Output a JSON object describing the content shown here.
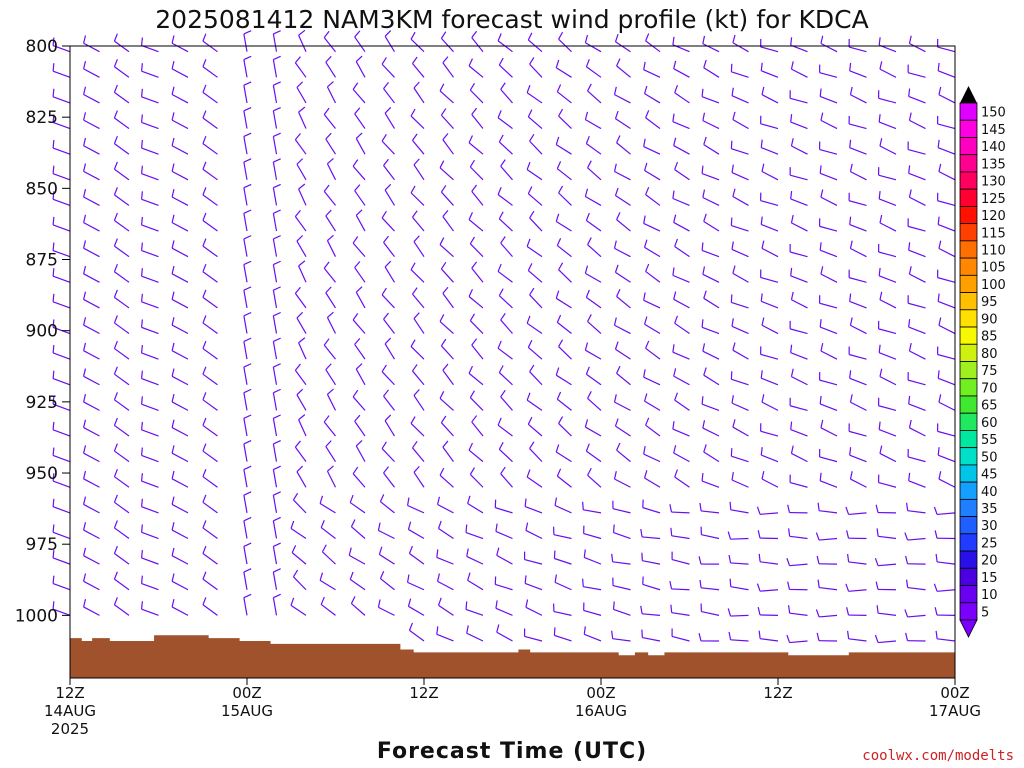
{
  "chart_data": {
    "type": "wind_barb_time_height",
    "title": "2025081412 NAM3KM forecast wind profile (kt) for KDCA",
    "xlabel": "Forecast Time (UTC)",
    "ylabel": "",
    "y_axis": {
      "ticks": [
        800,
        825,
        850,
        875,
        900,
        925,
        950,
        975,
        1000
      ],
      "ylim": [
        800,
        1022
      ],
      "units": "hPa"
    },
    "x_axis": {
      "ticks": [
        {
          "hour": 0,
          "lines": [
            "12Z",
            "14AUG",
            "2025"
          ]
        },
        {
          "hour": 12,
          "lines": [
            "00Z",
            "15AUG"
          ]
        },
        {
          "hour": 24,
          "lines": [
            "12Z"
          ]
        },
        {
          "hour": 36,
          "lines": [
            "00Z",
            "16AUG"
          ]
        },
        {
          "hour": 48,
          "lines": [
            "12Z"
          ]
        },
        {
          "hour": 60,
          "lines": [
            "00Z",
            "17AUG"
          ]
        }
      ],
      "xlim": [
        0,
        60
      ]
    },
    "barb_color": "#6a0df0",
    "terrain_color": "#a0522d",
    "surface_pressure_profile": [
      [
        0,
        1008
      ],
      [
        0.8,
        1009
      ],
      [
        1.5,
        1008
      ],
      [
        2.7,
        1009
      ],
      [
        5.7,
        1007
      ],
      [
        9.4,
        1008
      ],
      [
        11.5,
        1009
      ],
      [
        13.6,
        1010
      ],
      [
        15.2,
        1010
      ],
      [
        22.4,
        1012
      ],
      [
        23.3,
        1013
      ],
      [
        25.1,
        1013
      ],
      [
        27.3,
        1013
      ],
      [
        30.4,
        1012
      ],
      [
        31.2,
        1013
      ],
      [
        34.7,
        1013
      ],
      [
        37.2,
        1014
      ],
      [
        38.3,
        1013
      ],
      [
        39.2,
        1014
      ],
      [
        40.3,
        1013
      ],
      [
        48.7,
        1014
      ],
      [
        52.8,
        1013
      ],
      [
        55.1,
        1013
      ],
      [
        60,
        1013
      ]
    ],
    "colorbar": {
      "levels": [
        5,
        10,
        15,
        20,
        25,
        30,
        35,
        40,
        45,
        50,
        55,
        60,
        65,
        70,
        75,
        80,
        85,
        90,
        95,
        100,
        105,
        110,
        115,
        120,
        125,
        130,
        135,
        140,
        145,
        150
      ],
      "colors": [
        "#7b00ff",
        "#6a00f0",
        "#4a00e0",
        "#2a10e8",
        "#1f3cff",
        "#1f5fff",
        "#1f80ff",
        "#14a0ff",
        "#00c4e8",
        "#00e0c8",
        "#00e8a0",
        "#20e860",
        "#40e830",
        "#70f020",
        "#a0f020",
        "#d0f010",
        "#f8f800",
        "#ffe000",
        "#ffc000",
        "#ffa000",
        "#ff8800",
        "#ff7000",
        "#ff4000",
        "#ff1000",
        "#ff0030",
        "#ff0060",
        "#ff0090",
        "#ff00c0",
        "#ff00e0",
        "#e000ff"
      ]
    },
    "credit": "coolwx.com/modelts"
  }
}
